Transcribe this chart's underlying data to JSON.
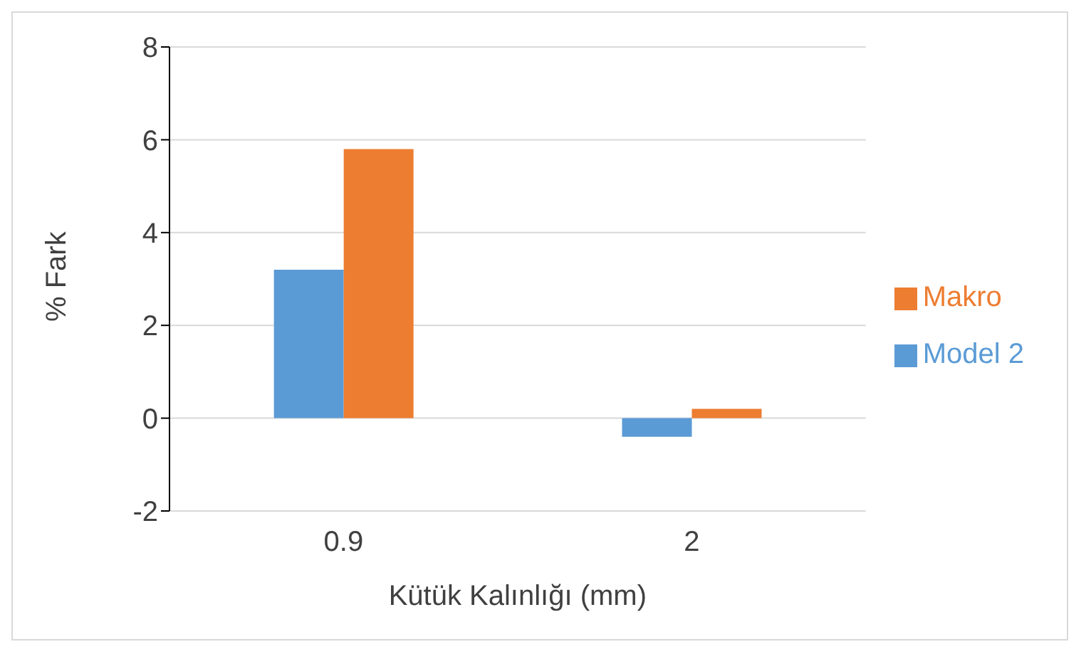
{
  "chart_data": {
    "type": "bar",
    "xlabel": "Kütük Kalınlığı (mm)",
    "ylabel": "% Fark",
    "categories": [
      "0.9",
      "2"
    ],
    "series": [
      {
        "name": "Model 2",
        "color": "#5b9bd5",
        "values": [
          3.2,
          -0.4
        ]
      },
      {
        "name": "Makro",
        "color": "#ed7d31",
        "values": [
          5.8,
          0.2
        ]
      }
    ],
    "ylim": [
      -2,
      8
    ],
    "yticks": [
      -2,
      0,
      2,
      4,
      6,
      8
    ],
    "grid": "y",
    "legend": "right"
  }
}
